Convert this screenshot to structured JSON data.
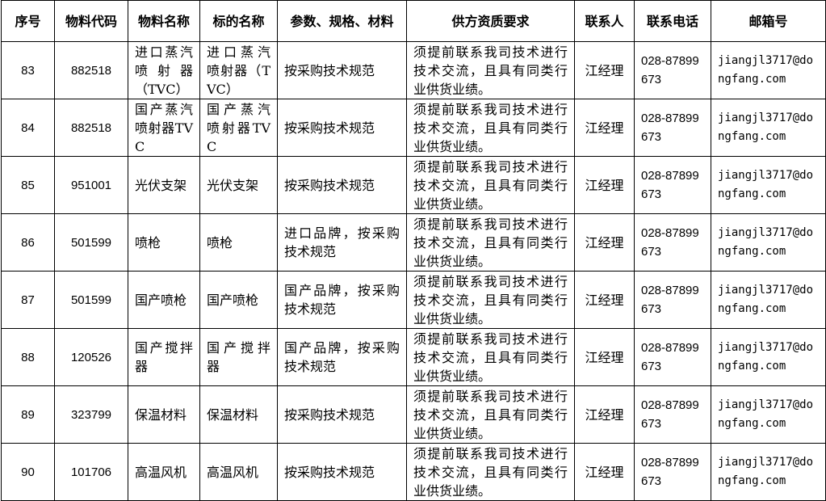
{
  "headers": [
    "序号",
    "物料代码",
    "物料名称",
    "标的名称",
    "参数、规格、材料",
    "供方资质要求",
    "联系人",
    "联系电话",
    "邮箱号"
  ],
  "rows": [
    {
      "no": "83",
      "code": "882518",
      "material": "进口蒸汽喷射器（TVC）",
      "target": "进口蒸汽喷射器（TVC）",
      "spec": "按采购技术规范",
      "qual": "须提前联系我司技术进行技术交流，且具有同类行业供货业绩。",
      "contact": "江经理",
      "phone": "028-87899673",
      "email": "jiangjl3717@dongfang.com"
    },
    {
      "no": "84",
      "code": "882518",
      "material": "国产蒸汽喷射器TVC",
      "target": "国产蒸汽喷射器TVC",
      "spec": "按采购技术规范",
      "qual": "须提前联系我司技术进行技术交流，且具有同类行业供货业绩。",
      "contact": "江经理",
      "phone": "028-87899673",
      "email": "jiangjl3717@dongfang.com"
    },
    {
      "no": "85",
      "code": "951001",
      "material": "光伏支架",
      "target": "光伏支架",
      "spec": "按采购技术规范",
      "qual": "须提前联系我司技术进行技术交流，且具有同类行业供货业绩。",
      "contact": "江经理",
      "phone": "028-87899673",
      "email": "jiangjl3717@dongfang.com"
    },
    {
      "no": "86",
      "code": "501599",
      "material": "喷枪",
      "target": "喷枪",
      "spec": "进口品牌，按采购技术规范",
      "qual": "须提前联系我司技术进行技术交流，且具有同类行业供货业绩。",
      "contact": "江经理",
      "phone": "028-87899673",
      "email": "jiangjl3717@dongfang.com"
    },
    {
      "no": "87",
      "code": "501599",
      "material": "国产喷枪",
      "target": "国产喷枪",
      "spec": "国产品牌，按采购技术规范",
      "qual": "须提前联系我司技术进行技术交流，且具有同类行业供货业绩。",
      "contact": "江经理",
      "phone": "028-87899673",
      "email": "jiangjl3717@dongfang.com"
    },
    {
      "no": "88",
      "code": "120526",
      "material": "国产搅拌器",
      "target": "国产搅拌器",
      "spec": "国产品牌，按采购技术规范",
      "qual": "须提前联系我司技术进行技术交流，且具有同类行业供货业绩。",
      "contact": "江经理",
      "phone": "028-87899673",
      "email": "jiangjl3717@dongfang.com"
    },
    {
      "no": "89",
      "code": "323799",
      "material": "保温材料",
      "target": "保温材料",
      "spec": "按采购技术规范",
      "qual": "须提前联系我司技术进行技术交流，且具有同类行业供货业绩。",
      "contact": "江经理",
      "phone": "028-87899673",
      "email": "jiangjl3717@dongfang.com"
    },
    {
      "no": "90",
      "code": "101706",
      "material": "高温风机",
      "target": "高温风机",
      "spec": "按采购技术规范",
      "qual": "须提前联系我司技术进行技术交流，且具有同类行业供货业绩。",
      "contact": "江经理",
      "phone": "028-87899673",
      "email": "jiangjl3717@dongfang.com"
    }
  ]
}
